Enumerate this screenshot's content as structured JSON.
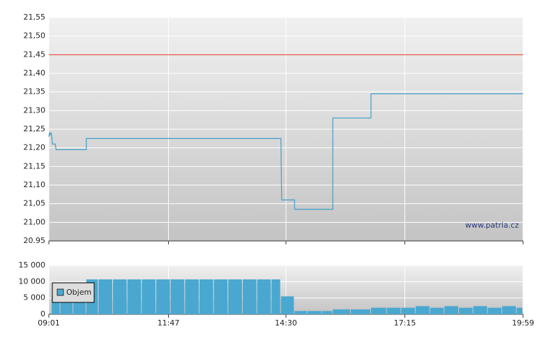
{
  "chart_data": [
    {
      "type": "line",
      "x": [
        "09:01",
        "09:02",
        "09:03",
        "09:04",
        "09:05",
        "09:06",
        "09:10",
        "09:11",
        "09:53",
        "09:53",
        "14:23",
        "14:24",
        "14:42",
        "14:42",
        "15:35",
        "15:35",
        "16:28",
        "16:28",
        "19:59"
      ],
      "series": [
        {
          "color": "#4aa3c8",
          "values": [
            21.23,
            21.24,
            21.235,
            21.24,
            21.235,
            21.21,
            21.21,
            21.195,
            21.195,
            21.225,
            21.225,
            21.06,
            21.06,
            21.035,
            21.035,
            21.28,
            21.28,
            21.345,
            21.345
          ]
        }
      ],
      "reference_line": {
        "value": 21.45,
        "color": "#e03020"
      },
      "xlim": [
        "09:01",
        "19:59"
      ],
      "xticks": [
        "09:01",
        "11:47",
        "14:30",
        "17:15",
        "19:59"
      ],
      "ylim": [
        20.95,
        21.55
      ],
      "yticks": [
        {
          "value": 21.55,
          "label": "21,55"
        },
        {
          "value": 21.5,
          "label": "21,50"
        },
        {
          "value": 21.45,
          "label": "21,45"
        },
        {
          "value": 21.4,
          "label": "21,40"
        },
        {
          "value": 21.35,
          "label": "21,35"
        },
        {
          "value": 21.3,
          "label": "21,30"
        },
        {
          "value": 21.25,
          "label": "21,25"
        },
        {
          "value": 21.2,
          "label": "21,20"
        },
        {
          "value": 21.15,
          "label": "21,15"
        },
        {
          "value": 21.1,
          "label": "21,10"
        },
        {
          "value": 21.05,
          "label": "21,05"
        },
        {
          "value": 21.0,
          "label": "21,00"
        },
        {
          "value": 20.95,
          "label": "20.95"
        }
      ],
      "grid": true,
      "watermark": "www.patria.cz"
    },
    {
      "type": "bar",
      "x": [
        "09:05",
        "09:17",
        "09:35",
        "09:53",
        "10:10",
        "10:30",
        "10:50",
        "11:10",
        "11:30",
        "11:50",
        "12:10",
        "12:30",
        "12:50",
        "13:10",
        "13:30",
        "13:50",
        "14:10",
        "14:23",
        "14:42",
        "15:00",
        "15:20",
        "15:35",
        "16:00",
        "16:28",
        "16:50",
        "17:10",
        "17:30",
        "17:50",
        "18:10",
        "18:30",
        "18:50",
        "19:10",
        "19:30",
        "19:50"
      ],
      "series": [
        {
          "name": "Objem",
          "color": "#4aa8d0",
          "values": [
            5500,
            5500,
            5500,
            10700,
            10700,
            10700,
            10700,
            10700,
            10700,
            10700,
            10700,
            10700,
            10700,
            10700,
            10700,
            10700,
            10700,
            5500,
            1000,
            1000,
            1000,
            1500,
            1500,
            2000,
            2000,
            2000,
            2500,
            2000,
            2500,
            2000,
            2500,
            2000,
            2500,
            2000
          ]
        }
      ],
      "xlim": [
        "09:01",
        "19:59"
      ],
      "xticks": [
        "09:01",
        "11:47",
        "14:30",
        "17:15",
        "19:59"
      ],
      "ylim": [
        0,
        15000
      ],
      "yticks": [
        {
          "value": 15000,
          "label": "15 000"
        },
        {
          "value": 10000,
          "label": "10 000"
        },
        {
          "value": 5000,
          "label": "5 000"
        },
        0
      ],
      "grid": true,
      "legend": "upper-left"
    }
  ]
}
